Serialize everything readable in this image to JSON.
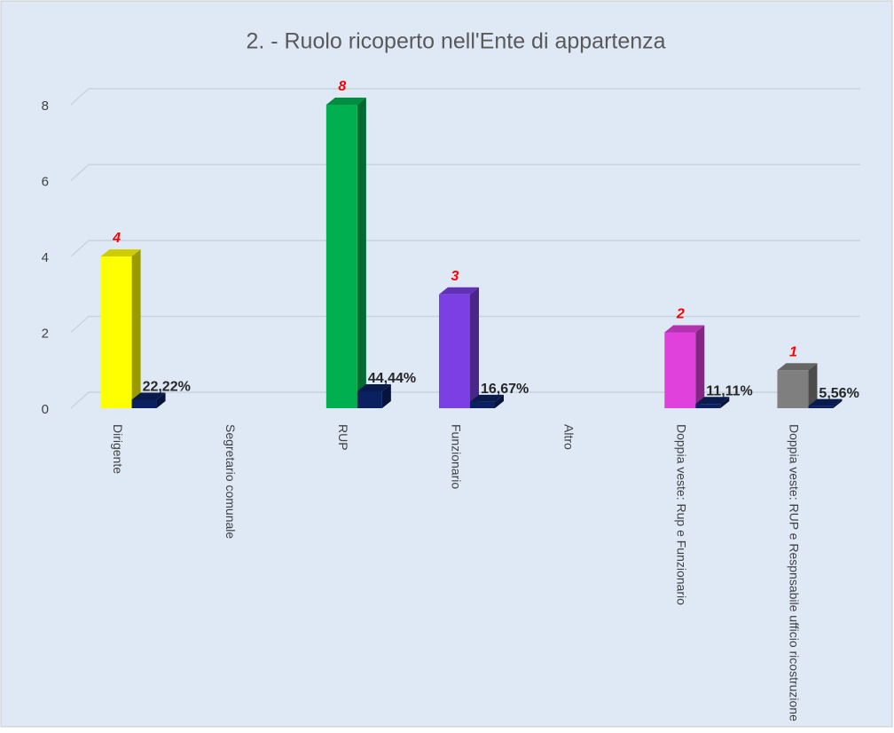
{
  "chart_data": {
    "type": "bar3d",
    "title": "2. - Ruolo ricoperto nell'Ente di appartenza",
    "categories": [
      "Dirigente",
      "Segretario comunale",
      "RUP",
      "Funzionario",
      "Altro",
      "Doppia veste: Rup e Funzionario",
      "Doppia veste: RUP e Respnsabile ufficio ricostruzione"
    ],
    "series": [
      {
        "colors": [
          "#ffff00",
          "#4472c4",
          "#00b050",
          "#7b3fe4",
          "#4472c4",
          "#e040dc",
          "#7f7f7f"
        ],
        "values": [
          4,
          0,
          8,
          3,
          0,
          2,
          1
        ]
      },
      {
        "color": "#0b2060",
        "values": [
          0.2222,
          0,
          0.4444,
          0.1667,
          0,
          0.1111,
          0.0556
        ],
        "value_labels": [
          "22,22%",
          null,
          "44,44%",
          "16,67%",
          null,
          "11,11%",
          "5,56%"
        ]
      }
    ],
    "ylim": [
      0,
      8
    ],
    "yticks": [
      0,
      2,
      4,
      6,
      8
    ],
    "grid": true
  }
}
